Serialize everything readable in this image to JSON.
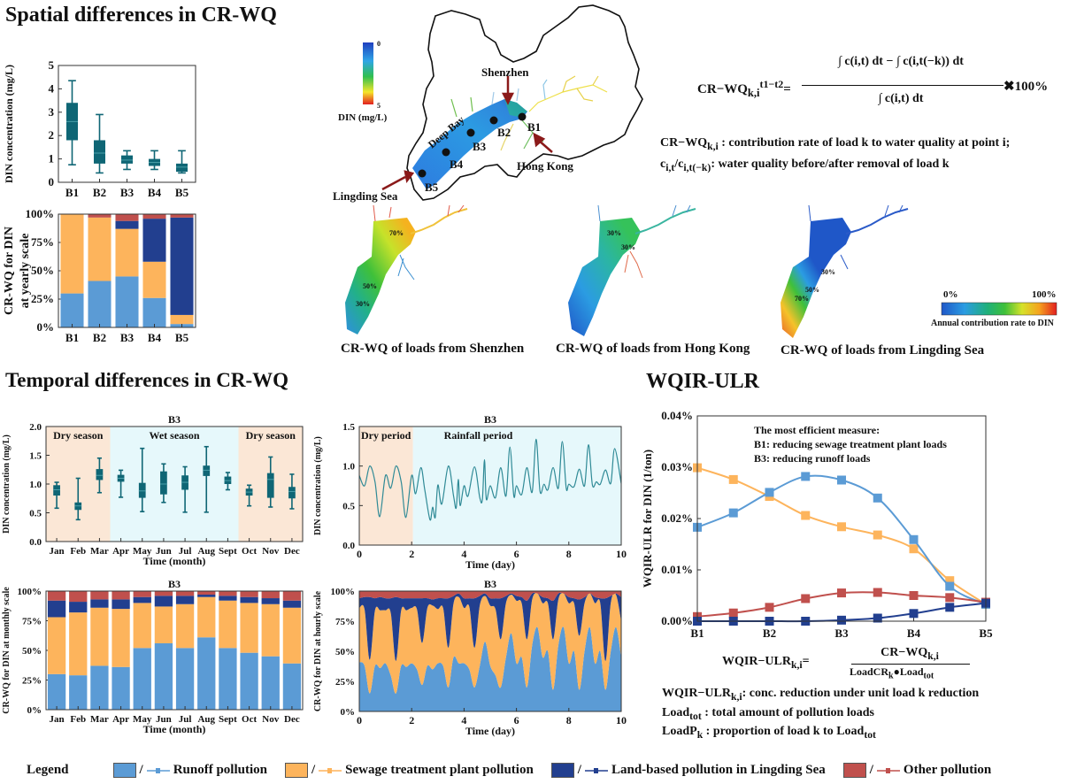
{
  "headings": {
    "spatial": "Spatial differences in CR-WQ",
    "temporal": "Temporal differences in CR-WQ",
    "wqir": "WQIR-ULR"
  },
  "colors": {
    "runoff": "#5b9bd5",
    "sewage": "#fdb45c",
    "lingding": "#223f8f",
    "other": "#c0504d",
    "box": "#0f6675",
    "dry_bg": "#fbe7d6",
    "wet_bg": "#e6f8fb"
  },
  "map": {
    "colorbar_top": "0",
    "colorbar_bottom": "5",
    "colorbar_label": "DIN (mg/L)",
    "labels": {
      "shenzhen": "Shenzhen",
      "hong_kong": "Hong Kong",
      "lingding": "Lingding Sea",
      "deep_bay": "Deep Bay",
      "b1": "B1",
      "b2": "B2",
      "b3": "B3",
      "b4": "B4",
      "b5": "B5"
    }
  },
  "formula1": {
    "lhs": "CR−WQ",
    "lhs_sub": "k,i",
    "lhs_sup": "t1−t2",
    "numerator": "∫ c(i,t) dt − ∫ c(i,t(−k)) dt",
    "denominator": "∫ c(i,t) dt",
    "times": "✖100%",
    "def1_term": "CR−WQ",
    "def1_sub": "k,i",
    "def1_text": " :  contribution rate of load k to water quality at point i;",
    "def2_term": "c",
    "def2_sub": "i,t",
    "def2_mid": "/c",
    "def2_sub2": "i,t(−k)",
    "def2_text": ":  water quality before/after removal of load k"
  },
  "maps_cr": {
    "captions": [
      "CR-WQ of loads from Shenzhen",
      "CR-WQ of loads from Hong Kong",
      "CR-WQ of loads from Lingding Sea"
    ],
    "scale_min": "0%",
    "scale_max": "100%",
    "scale_label": "Annual contribution rate to DIN",
    "contours": {
      "shenzhen": [
        "70%",
        "50%",
        "30%"
      ],
      "hongkong": [
        "30%",
        "30%"
      ],
      "lingding": [
        "30%",
        "50%",
        "70%"
      ]
    }
  },
  "formula2": {
    "lhs": "WQIR−ULR",
    "lhs_sub": "k,i",
    "num": "CR−WQ",
    "num_sub": "k,i",
    "den": "LoadCR",
    "den_sub": "k",
    "den2": "●Load",
    "den2_sub": "tot",
    "d1_term": "WQIR−ULR",
    "d1_sub": "k,i",
    "d1_text": ": conc. reduction under unit load k reduction",
    "d2_term": "Load",
    "d2_sub": "tot",
    "d2_text": " : total amount of pollution loads",
    "d3_term": "LoadP",
    "d3_sub": "k",
    "d3_text": " : proportion of load k to Load",
    "d3_sub2": "tot"
  },
  "legend": {
    "title": "Legend",
    "items": [
      {
        "label": "Runoff pollution",
        "color": "#5b9bd5"
      },
      {
        "label": "Sewage treatment plant pollution",
        "color": "#fdb45c"
      },
      {
        "label": "Land-based pollution in Lingding Sea",
        "color": "#223f8f"
      },
      {
        "label": "Other pollution",
        "color": "#c0504d"
      }
    ]
  },
  "chart_data": [
    {
      "id": "spatial-box",
      "type": "box",
      "title": "",
      "xlabel": "",
      "ylabel": "DIN concentration (mg/L)",
      "ylim": [
        0,
        5
      ],
      "yticks": [
        "0",
        "1",
        "2",
        "3",
        "4",
        "5"
      ],
      "categories": [
        "B1",
        "B2",
        "B3",
        "B4",
        "B5"
      ],
      "boxes": [
        {
          "min": 0.75,
          "q1": 1.8,
          "median": 2.6,
          "q3": 3.4,
          "max": 4.35
        },
        {
          "min": 0.4,
          "q1": 0.8,
          "median": 1.25,
          "q3": 1.8,
          "max": 2.9
        },
        {
          "min": 0.55,
          "q1": 0.8,
          "median": 0.95,
          "q3": 1.15,
          "max": 1.35
        },
        {
          "min": 0.55,
          "q1": 0.7,
          "median": 0.85,
          "q3": 1.0,
          "max": 1.35
        },
        {
          "min": 0.4,
          "q1": 0.45,
          "median": 0.65,
          "q3": 0.8,
          "max": 1.35
        }
      ]
    },
    {
      "id": "spatial-yearly",
      "type": "bar",
      "stacked": true,
      "ylabel": "CR-WQ for DIN at yearly scale",
      "ylim": [
        0,
        100
      ],
      "yticks": [
        "0%",
        "25%",
        "50%",
        "75%",
        "100%"
      ],
      "categories": [
        "B1",
        "B2",
        "B3",
        "B4",
        "B5"
      ],
      "series": [
        {
          "name": "Runoff pollution",
          "values": [
            30,
            41,
            45,
            26,
            3
          ]
        },
        {
          "name": "Sewage treatment plant pollution",
          "values": [
            70,
            56,
            42,
            32,
            8
          ]
        },
        {
          "name": "Land-based pollution in Lingding Sea",
          "values": [
            0,
            0,
            7,
            38,
            86
          ]
        },
        {
          "name": "Other pollution",
          "values": [
            0,
            3,
            6,
            4,
            3
          ]
        }
      ]
    },
    {
      "id": "monthly-box",
      "type": "box",
      "title": "B3",
      "xlabel": "Time (month)",
      "ylabel": "DIN concentration (mg/L)",
      "ylim": [
        0,
        2
      ],
      "yticks": [
        "0.0",
        "0.5",
        "1.0",
        "1.5",
        "2.0"
      ],
      "categories": [
        "Jan",
        "Feb",
        "Mar",
        "Apr",
        "May",
        "Jun",
        "Jul",
        "Aug",
        "Sept",
        "Oct",
        "Nov",
        "Dec"
      ],
      "seasons": [
        {
          "label": "Dry season",
          "from": 0,
          "to": 3,
          "kind": "dry"
        },
        {
          "label": "Wet season",
          "from": 3,
          "to": 9,
          "kind": "wet"
        },
        {
          "label": "Dry season",
          "from": 9,
          "to": 12,
          "kind": "dry"
        }
      ],
      "boxes": [
        {
          "min": 0.58,
          "q1": 0.8,
          "median": 0.9,
          "q3": 0.98,
          "max": 1.03
        },
        {
          "min": 0.38,
          "q1": 0.55,
          "median": 0.62,
          "q3": 0.68,
          "max": 1.1
        },
        {
          "min": 0.85,
          "q1": 1.07,
          "median": 1.15,
          "q3": 1.26,
          "max": 1.45
        },
        {
          "min": 0.77,
          "q1": 1.04,
          "median": 1.1,
          "q3": 1.16,
          "max": 1.24
        },
        {
          "min": 0.52,
          "q1": 0.76,
          "median": 0.88,
          "q3": 1.02,
          "max": 1.62
        },
        {
          "min": 0.68,
          "q1": 0.82,
          "median": 1.0,
          "q3": 1.22,
          "max": 1.35
        },
        {
          "min": 0.51,
          "q1": 0.9,
          "median": 1.03,
          "q3": 1.15,
          "max": 1.3
        },
        {
          "min": 0.51,
          "q1": 1.14,
          "median": 1.24,
          "q3": 1.32,
          "max": 1.65
        },
        {
          "min": 0.9,
          "q1": 1.0,
          "median": 1.06,
          "q3": 1.13,
          "max": 1.2
        },
        {
          "min": 0.62,
          "q1": 0.8,
          "median": 0.86,
          "q3": 0.92,
          "max": 0.98
        },
        {
          "min": 0.6,
          "q1": 0.76,
          "median": 1.08,
          "q3": 1.19,
          "max": 1.47
        },
        {
          "min": 0.57,
          "q1": 0.75,
          "median": 0.87,
          "q3": 0.95,
          "max": 1.17
        }
      ]
    },
    {
      "id": "monthly-cr",
      "type": "bar",
      "stacked": true,
      "title": "B3",
      "xlabel": "Time (month)",
      "ylabel": "CR-WQ for DIN at monthly scale",
      "ylim": [
        0,
        100
      ],
      "yticks": [
        "0%",
        "25%",
        "50%",
        "75%",
        "100%"
      ],
      "categories": [
        "Jan",
        "Feb",
        "Mar",
        "Apr",
        "May",
        "Jun",
        "Jul",
        "Aug",
        "Sept",
        "Oct",
        "Nov",
        "Dec"
      ],
      "series": [
        {
          "name": "Runoff pollution",
          "values": [
            30,
            29,
            37,
            36,
            52,
            56,
            52,
            61,
            52,
            48,
            45,
            39
          ]
        },
        {
          "name": "Sewage treatment plant pollution",
          "values": [
            48,
            53,
            49,
            49,
            38,
            31,
            37,
            34,
            40,
            42,
            44,
            47
          ]
        },
        {
          "name": "Land-based pollution in Lingding Sea",
          "values": [
            14,
            9,
            7,
            8,
            5,
            9,
            7,
            2,
            4,
            5,
            5,
            6
          ]
        },
        {
          "name": "Other pollution",
          "values": [
            8,
            9,
            7,
            7,
            5,
            4,
            4,
            3,
            4,
            5,
            6,
            8
          ]
        }
      ]
    },
    {
      "id": "hourly-line",
      "type": "line",
      "title": "B3",
      "xlabel": "Time (day)",
      "ylabel": "DIN concentration (mg/L)",
      "xlim": [
        0,
        10
      ],
      "ylim": [
        0,
        1.5
      ],
      "xticks": [
        "0",
        "2",
        "4",
        "6",
        "8",
        "10"
      ],
      "yticks": [
        "0.0",
        "0.5",
        "1.0",
        "1.5"
      ],
      "periods": [
        {
          "label": "Dry period",
          "from": 0,
          "to": 2.05,
          "kind": "dry"
        },
        {
          "label": "Rainfall period",
          "from": 2.05,
          "to": 10,
          "kind": "wet"
        }
      ],
      "series": [
        {
          "name": "DIN",
          "x": [
            0,
            0.2,
            0.4,
            0.6,
            0.78,
            1.0,
            1.2,
            1.4,
            1.6,
            1.78,
            2.0,
            2.15,
            2.35,
            2.5,
            2.7,
            2.8,
            2.9,
            3.0,
            3.15,
            3.4,
            3.6,
            3.7,
            3.78,
            3.85,
            4.0,
            4.15,
            4.4,
            4.6,
            4.7,
            4.78,
            4.85,
            5.0,
            5.2,
            5.4,
            5.6,
            5.75,
            5.9,
            6.0,
            6.2,
            6.4,
            6.6,
            6.75,
            6.9,
            7.05,
            7.2,
            7.4,
            7.6,
            7.75,
            7.9,
            8.0,
            8.2,
            8.4,
            8.6,
            8.75,
            8.9,
            9.05,
            9.2,
            9.4,
            9.6,
            9.75,
            10.0
          ],
          "y": [
            0.88,
            0.75,
            1.0,
            0.8,
            0.36,
            0.88,
            0.72,
            1.0,
            0.8,
            0.35,
            0.88,
            0.65,
            0.98,
            0.7,
            0.32,
            0.48,
            0.35,
            0.76,
            0.52,
            1.0,
            0.62,
            0.47,
            0.83,
            0.5,
            0.75,
            0.62,
            0.99,
            0.6,
            0.58,
            1.08,
            0.58,
            0.75,
            0.6,
            0.98,
            0.62,
            1.24,
            0.62,
            0.75,
            0.64,
            0.98,
            0.67,
            1.34,
            0.68,
            0.77,
            0.7,
            0.98,
            0.72,
            1.31,
            0.72,
            0.77,
            0.74,
            0.96,
            0.75,
            1.27,
            0.76,
            0.8,
            0.77,
            0.95,
            0.78,
            1.22,
            0.78
          ]
        }
      ]
    },
    {
      "id": "hourly-cr",
      "type": "area",
      "stacked": true,
      "title": "B3",
      "xlabel": "Time (day)",
      "ylabel": "CR-WQ for DIN at hourly scale",
      "xlim": [
        0,
        10
      ],
      "ylim": [
        0,
        100
      ],
      "xticks": [
        "0",
        "2",
        "4",
        "6",
        "8",
        "10"
      ],
      "yticks": [
        "0%",
        "25%",
        "50%",
        "75%",
        "100%"
      ],
      "x": [
        0,
        0.2,
        0.4,
        0.6,
        0.8,
        1.0,
        1.2,
        1.4,
        1.6,
        1.8,
        2.0,
        2.2,
        2.4,
        2.6,
        2.8,
        3.0,
        3.2,
        3.4,
        3.6,
        3.8,
        4.0,
        4.2,
        4.4,
        4.6,
        4.8,
        5.0,
        5.2,
        5.4,
        5.6,
        5.8,
        6.0,
        6.2,
        6.4,
        6.6,
        6.8,
        7.0,
        7.2,
        7.4,
        7.6,
        7.8,
        8.0,
        8.2,
        8.4,
        8.6,
        8.8,
        9.0,
        9.2,
        9.4,
        9.6,
        9.8,
        10.0
      ],
      "series": [
        {
          "name": "Runoff pollution",
          "values": [
            41,
            38,
            15,
            38,
            36,
            40,
            30,
            15,
            38,
            37,
            40,
            35,
            22,
            38,
            35,
            40,
            38,
            20,
            45,
            40,
            40,
            35,
            20,
            38,
            58,
            38,
            30,
            20,
            45,
            65,
            40,
            45,
            20,
            55,
            70,
            45,
            50,
            18,
            55,
            70,
            40,
            50,
            18,
            50,
            70,
            40,
            50,
            18,
            50,
            70,
            45
          ]
        },
        {
          "name": "Sewage treatment plant pollution",
          "values": [
            45,
            47,
            28,
            46,
            48,
            44,
            52,
            27,
            46,
            47,
            46,
            50,
            35,
            48,
            53,
            45,
            48,
            33,
            45,
            55,
            46,
            52,
            33,
            50,
            38,
            50,
            55,
            40,
            45,
            32,
            52,
            45,
            40,
            38,
            28,
            45,
            40,
            42,
            38,
            28,
            50,
            40,
            45,
            40,
            28,
            50,
            40,
            24,
            40,
            27,
            30
          ]
        },
        {
          "name": "Land-based pollution in Lingding Sea",
          "values": [
            8,
            10,
            52,
            10,
            11,
            10,
            12,
            53,
            10,
            10,
            8,
            9,
            37,
            8,
            5,
            9,
            8,
            41,
            6,
            3,
            8,
            7,
            41,
            8,
            2,
            6,
            9,
            34,
            6,
            1,
            4,
            5,
            32,
            5,
            0,
            5,
            4,
            32,
            5,
            0,
            5,
            4,
            30,
            5,
            0,
            5,
            4,
            52,
            6,
            1,
            20
          ]
        },
        {
          "name": "Other pollution",
          "values": [
            6,
            5,
            5,
            6,
            5,
            6,
            6,
            5,
            6,
            6,
            6,
            6,
            6,
            6,
            7,
            6,
            6,
            6,
            4,
            2,
            6,
            6,
            6,
            4,
            2,
            6,
            6,
            6,
            4,
            2,
            4,
            5,
            8,
            2,
            2,
            5,
            6,
            10,
            2,
            2,
            5,
            6,
            7,
            5,
            2,
            5,
            6,
            6,
            4,
            2,
            5
          ]
        }
      ]
    },
    {
      "id": "wqir-line",
      "type": "line",
      "title": "",
      "xlabel": "",
      "ylabel": "WQIR-ULR for DIN (1/ton)",
      "ylim": [
        0,
        0.04
      ],
      "yticks": [
        "0.00%",
        "0.01%",
        "0.02%",
        "0.03%",
        "0.04%"
      ],
      "xticks": [
        "B1",
        "B2",
        "B3",
        "B4",
        "B5"
      ],
      "x": [
        1,
        1.5,
        2,
        2.5,
        3,
        3.5,
        4,
        4.5,
        5
      ],
      "annotation": [
        "The most efficient measure:",
        "B1: reducing sewage treatment plant loads",
        "B3: reducing runoff loads"
      ],
      "series": [
        {
          "name": "Runoff pollution",
          "values": [
            0.0183,
            0.0211,
            0.0251,
            0.0282,
            0.0275,
            0.024,
            0.0159,
            0.0068,
            0.0033
          ]
        },
        {
          "name": "Sewage treatment plant pollution",
          "values": [
            0.0299,
            0.0276,
            0.0243,
            0.0206,
            0.0184,
            0.0168,
            0.0141,
            0.0079,
            0.0033
          ]
        },
        {
          "name": "Land-based pollution in Lingding Sea",
          "values": [
            0.0,
            0.0,
            0.0,
            0.0,
            0.0002,
            0.0006,
            0.0015,
            0.0027,
            0.0035
          ]
        },
        {
          "name": "Other pollution",
          "values": [
            0.0009,
            0.0016,
            0.0027,
            0.0044,
            0.0055,
            0.0056,
            0.005,
            0.0046,
            0.0037
          ]
        }
      ]
    }
  ]
}
